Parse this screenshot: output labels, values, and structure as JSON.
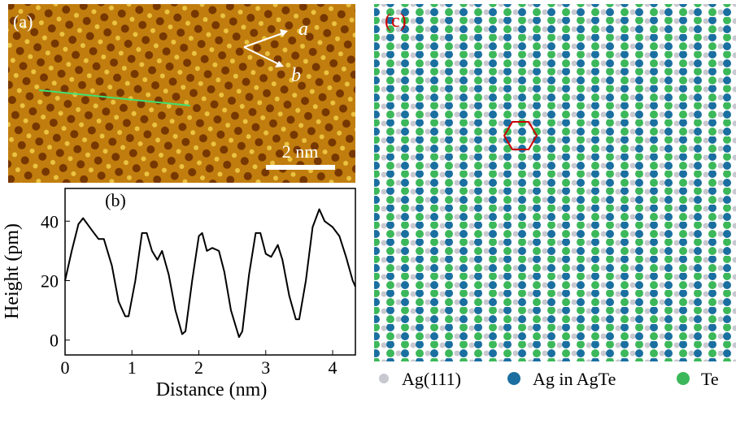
{
  "panel_a": {
    "label": "(a)",
    "arrow_a": "a",
    "arrow_b": "b",
    "scale_bar": "2 nm"
  },
  "chart_data": {
    "type": "line",
    "panel_label": "(b)",
    "x_label": "Distance (nm)",
    "y_label": "Height (pm)",
    "x": [
      0,
      0.1,
      0.2,
      0.27,
      0.4,
      0.5,
      0.58,
      0.7,
      0.8,
      0.9,
      0.95,
      1.05,
      1.15,
      1.22,
      1.3,
      1.38,
      1.45,
      1.55,
      1.65,
      1.75,
      1.8,
      1.9,
      2.0,
      2.05,
      2.12,
      2.2,
      2.3,
      2.38,
      2.48,
      2.6,
      2.65,
      2.75,
      2.85,
      2.92,
      3.0,
      3.08,
      3.18,
      3.25,
      3.35,
      3.45,
      3.5,
      3.6,
      3.7,
      3.8,
      3.88,
      4.0,
      4.1,
      4.2,
      4.3,
      4.34
    ],
    "series": [
      {
        "color": "#000000",
        "values": [
          20,
          30,
          39,
          41,
          37,
          34,
          34,
          25,
          13,
          8,
          8,
          20,
          36,
          36,
          30,
          27,
          30,
          22,
          10,
          2,
          3,
          20,
          35,
          36,
          30,
          31,
          30,
          23,
          10,
          1,
          3,
          22,
          36,
          36,
          29,
          28,
          32,
          27,
          15,
          7,
          7,
          20,
          38,
          44,
          40,
          38,
          35,
          28,
          20,
          18
        ]
      }
    ],
    "xlim": [
      0,
      4.34
    ],
    "ylim": [
      -5,
      51
    ],
    "xticks": [
      0,
      1,
      2,
      3,
      4
    ],
    "yticks": [
      0,
      20,
      40
    ]
  },
  "panel_c": {
    "label": "(c)",
    "legend": [
      "Ag(111)",
      "Ag in AgTe",
      "Te"
    ]
  }
}
